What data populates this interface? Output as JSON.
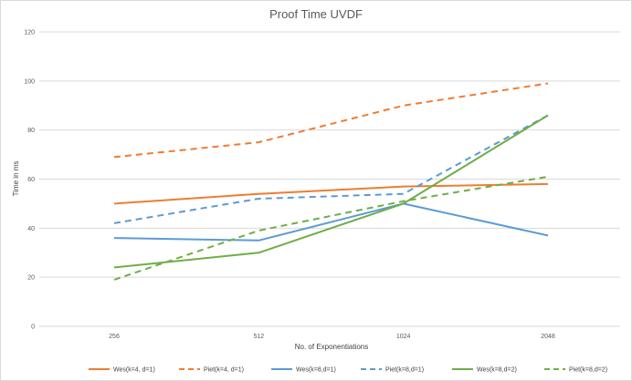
{
  "chart_data": {
    "type": "line",
    "title": "Proof Time UVDF",
    "xlabel": "No. of Exponentiations",
    "ylabel": "Time in ms",
    "categories": [
      "256",
      "512",
      "1024",
      "2048"
    ],
    "ylim": [
      0,
      120
    ],
    "yticks": [
      "0",
      "20",
      "40",
      "60",
      "80",
      "100",
      "120"
    ],
    "grid": true,
    "legend_position": "bottom",
    "series": [
      {
        "name": "Wes(k=4, d=1)",
        "values": [
          50,
          54,
          57,
          58
        ],
        "color": "#ed7d31",
        "dashed": false
      },
      {
        "name": "Piet(k=4, d=1)",
        "values": [
          69,
          75,
          90,
          99
        ],
        "color": "#ed7d31",
        "dashed": true
      },
      {
        "name": "Wes(k=8,d=1)",
        "values": [
          36,
          35,
          50,
          37
        ],
        "color": "#5b9bd5",
        "dashed": false
      },
      {
        "name": "Piet(k=8,d=1)",
        "values": [
          42,
          52,
          54,
          86
        ],
        "color": "#5b9bd5",
        "dashed": true
      },
      {
        "name": "Wes(k=8,d=2)",
        "values": [
          24,
          30,
          50,
          86
        ],
        "color": "#70ad47",
        "dashed": false
      },
      {
        "name": "Piet(k=8,d=2)",
        "values": [
          19,
          39,
          51,
          61
        ],
        "color": "#70ad47",
        "dashed": true
      }
    ]
  }
}
